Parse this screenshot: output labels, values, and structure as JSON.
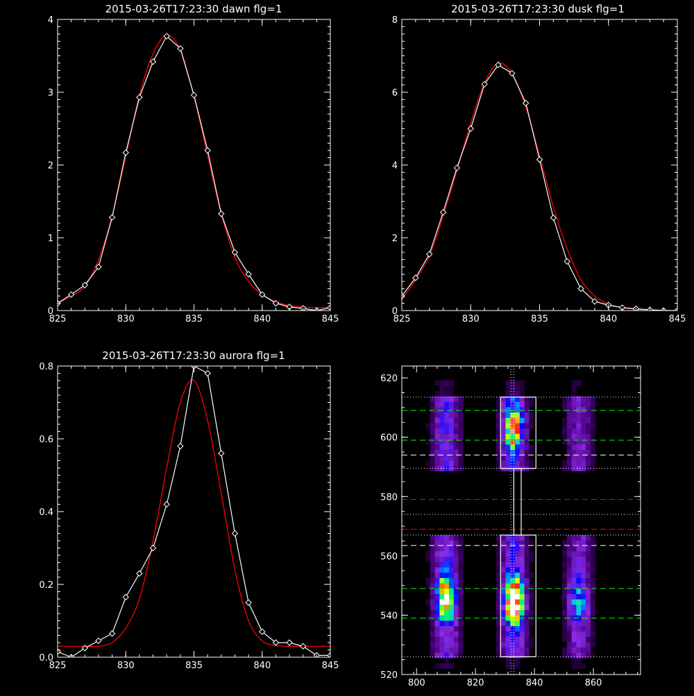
{
  "chart_data": [
    {
      "type": "line",
      "title": "2015-03-26T17:23:30 dawn flg=1",
      "xlim": [
        825,
        845
      ],
      "ylim": [
        0,
        4
      ],
      "xticks": [
        825,
        830,
        835,
        840,
        845
      ],
      "yticks": [
        0,
        1,
        2,
        3,
        4
      ],
      "xtick_labels": [
        "825",
        "830",
        "835",
        "840",
        "845"
      ],
      "ytick_labels": [
        "0",
        "1",
        "2",
        "3",
        "4"
      ],
      "series": [
        {
          "color": "#ffffff",
          "marker": "diamond",
          "x": [
            825,
            826,
            827,
            828,
            829,
            830,
            831,
            832,
            833,
            834,
            835,
            836,
            837,
            838,
            839,
            840,
            841,
            842,
            843,
            844,
            845
          ],
          "y": [
            0.1,
            0.22,
            0.35,
            0.6,
            1.28,
            2.17,
            2.93,
            3.42,
            3.77,
            3.6,
            2.96,
            2.2,
            1.33,
            0.8,
            0.5,
            0.22,
            0.1,
            0.05,
            0.03,
            0.0,
            0.04
          ]
        },
        {
          "color": "#ff0000",
          "x": [
            825,
            826,
            827,
            828,
            829,
            830,
            831,
            832,
            833,
            834,
            835,
            836,
            837,
            838,
            839,
            840,
            841,
            842,
            843,
            844,
            845
          ],
          "y": [
            0.1,
            0.2,
            0.33,
            0.7,
            1.3,
            2.12,
            2.96,
            3.53,
            3.78,
            3.58,
            2.94,
            2.13,
            1.33,
            0.73,
            0.4,
            0.22,
            0.12,
            0.07,
            0.05,
            0.04,
            0.04
          ]
        }
      ]
    },
    {
      "type": "line",
      "title": "2015-03-26T17:23:30 dusk flg=1",
      "xlim": [
        825,
        845
      ],
      "ylim": [
        0,
        8
      ],
      "xticks": [
        825,
        830,
        835,
        840,
        845
      ],
      "yticks": [
        0,
        2,
        4,
        6,
        8
      ],
      "xtick_labels": [
        "825",
        "830",
        "835",
        "840",
        "845"
      ],
      "ytick_labels": [
        "0",
        "2",
        "4",
        "6",
        "8"
      ],
      "series": [
        {
          "color": "#ffffff",
          "marker": "diamond",
          "x": [
            825,
            826,
            827,
            828,
            829,
            830,
            831,
            832,
            833,
            834,
            835,
            836,
            837,
            838,
            839,
            840,
            841,
            842,
            843,
            844,
            845
          ],
          "y": [
            0.4,
            0.9,
            1.55,
            2.7,
            3.92,
            5.0,
            6.22,
            6.75,
            6.52,
            5.7,
            4.15,
            2.55,
            1.35,
            0.6,
            0.25,
            0.15,
            0.08,
            0.05,
            0.02,
            0.0,
            0.0
          ]
        },
        {
          "color": "#ff0000",
          "x": [
            825,
            826,
            827,
            828,
            829,
            830,
            831,
            832,
            833,
            834,
            835,
            836,
            837,
            838,
            839,
            840,
            841,
            842,
            843,
            844,
            845
          ],
          "y": [
            0.3,
            0.85,
            1.5,
            2.6,
            3.85,
            5.15,
            6.25,
            6.8,
            6.5,
            5.6,
            4.25,
            2.85,
            1.7,
            0.85,
            0.4,
            0.18,
            0.08,
            0.04,
            0.02,
            0.01,
            0.0
          ]
        }
      ]
    },
    {
      "type": "line",
      "title": "2015-03-26T17:23:30 aurora flg=1",
      "xlim": [
        825,
        845
      ],
      "ylim": [
        0,
        0.8
      ],
      "xticks": [
        825,
        830,
        835,
        840,
        845
      ],
      "yticks": [
        0,
        0.2,
        0.4,
        0.6,
        0.8
      ],
      "xtick_labels": [
        "825",
        "830",
        "835",
        "840",
        "845"
      ],
      "ytick_labels": [
        "0.0",
        "0.2",
        "0.4",
        "0.6",
        "0.8"
      ],
      "series": [
        {
          "color": "#ffffff",
          "marker": "diamond",
          "x": [
            825,
            826,
            827,
            828,
            829,
            830,
            831,
            832,
            833,
            834,
            835,
            836,
            837,
            838,
            839,
            840,
            841,
            842,
            843,
            844,
            845
          ],
          "y": [
            0.015,
            0.0,
            0.025,
            0.045,
            0.065,
            0.165,
            0.23,
            0.3,
            0.42,
            0.58,
            0.8,
            0.78,
            0.56,
            0.34,
            0.15,
            0.07,
            0.04,
            0.04,
            0.03,
            0.005,
            0.005
          ]
        },
        {
          "color": "#ff0000",
          "x": [
            825,
            826,
            827,
            828,
            829,
            830,
            831,
            832,
            833,
            834,
            835,
            836,
            837,
            838,
            839,
            840,
            841,
            842,
            843,
            844,
            845
          ],
          "y": [
            0.03,
            0.03,
            0.03,
            0.03,
            0.04,
            0.08,
            0.16,
            0.32,
            0.52,
            0.7,
            0.76,
            0.65,
            0.45,
            0.24,
            0.1,
            0.045,
            0.032,
            0.03,
            0.03,
            0.03,
            0.03
          ]
        }
      ]
    },
    {
      "type": "heatmap",
      "xlim": [
        795,
        876
      ],
      "ylim": [
        520,
        624
      ],
      "xticks": [
        800,
        820,
        840,
        860
      ],
      "yticks": [
        520,
        540,
        560,
        580,
        600,
        620
      ],
      "xtick_labels": [
        "800",
        "820",
        "840",
        "860"
      ],
      "ytick_labels": [
        "520",
        "540",
        "560",
        "580",
        "600",
        "620"
      ],
      "colormap": [
        "#000000",
        "#4b0082",
        "#8a2be2",
        "#0000ff",
        "#00bfff",
        "#00ff66",
        "#ffff00",
        "#ff0000",
        "#ffffff"
      ],
      "emission_bands": [
        {
          "x": 810,
          "width": 4.5
        },
        {
          "x": 833,
          "width": 4.5
        },
        {
          "x": 855,
          "width": 4.5
        }
      ],
      "bright_spots": [
        {
          "x": 810,
          "y": 546,
          "peak": 0.7
        },
        {
          "x": 833,
          "y": 545,
          "peak": 1.0
        },
        {
          "x": 833,
          "y": 603,
          "peak": 0.6
        },
        {
          "x": 855,
          "y": 545,
          "peak": 0.3
        }
      ],
      "vertical_dotted_lines": [
        {
          "x": 832,
          "color": "#ffffff"
        },
        {
          "x": 833,
          "color": "#ffffff"
        }
      ],
      "horizontal_lines": [
        {
          "y": 613.5,
          "color": "#ffffff",
          "style": "dotted"
        },
        {
          "y": 609.0,
          "color": "#00ff00",
          "style": "dashed"
        },
        {
          "y": 599.0,
          "color": "#00ff00",
          "style": "dashed"
        },
        {
          "y": 594.0,
          "color": "#ffffff",
          "style": "dashed"
        },
        {
          "y": 589.5,
          "color": "#ffffff",
          "style": "dotted"
        },
        {
          "y": 579.0,
          "color": "#ff0000",
          "style": "dashed"
        },
        {
          "y": 574.0,
          "color": "#ffffff",
          "style": "dotted"
        },
        {
          "y": 569.0,
          "color": "#ff0000",
          "style": "dashed"
        },
        {
          "y": 567.0,
          "color": "#ffffff",
          "style": "dotted"
        },
        {
          "y": 563.5,
          "color": "#ffffff",
          "style": "dashed"
        },
        {
          "y": 549.0,
          "color": "#00ff00",
          "style": "dashed"
        },
        {
          "y": 539.0,
          "color": "#00ff00",
          "style": "dashed"
        },
        {
          "y": 526.0,
          "color": "#ffffff",
          "style": "dotted"
        }
      ],
      "boxes": [
        {
          "x0": 828.5,
          "x1": 840.5,
          "y0": 589.5,
          "y1": 613.5,
          "color": "#ffffff"
        },
        {
          "x0": 828.5,
          "x1": 840.5,
          "y0": 526.0,
          "y1": 567.0,
          "color": "#ffffff"
        },
        {
          "x0": 833.0,
          "x1": 835.5,
          "y0": 567.0,
          "y1": 589.5,
          "color": "#ffffff"
        }
      ]
    }
  ]
}
